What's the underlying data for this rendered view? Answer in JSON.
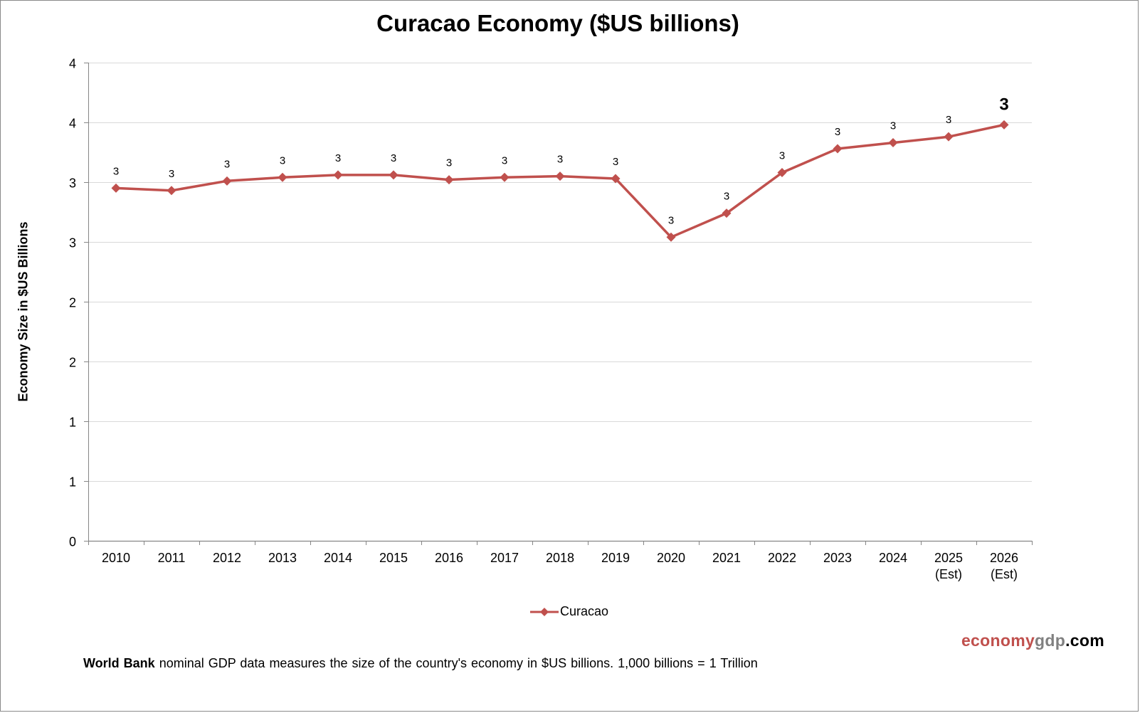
{
  "chart_data": {
    "type": "line",
    "title": "Curacao Economy ($US billions)",
    "xlabel": "",
    "ylabel": "Economy Size in $US Billions",
    "categories": [
      "2010",
      "2011",
      "2012",
      "2013",
      "2014",
      "2015",
      "2016",
      "2017",
      "2018",
      "2019",
      "2020",
      "2021",
      "2022",
      "2023",
      "2024",
      "2025\n(Est)",
      "2026\n(Est)"
    ],
    "series": [
      {
        "name": "Curacao",
        "color": "#c0504d",
        "marker": "diamond",
        "values": [
          2.95,
          2.93,
          3.01,
          3.04,
          3.06,
          3.06,
          3.02,
          3.04,
          3.05,
          3.03,
          2.54,
          2.74,
          3.08,
          3.28,
          3.33,
          3.38,
          3.48
        ],
        "data_labels": [
          "3",
          "3",
          "3",
          "3",
          "3",
          "3",
          "3",
          "3",
          "3",
          "3",
          "3",
          "3",
          "3",
          "3",
          "3",
          "3",
          "3"
        ],
        "highlight_last_label": true
      }
    ],
    "ylim": [
      0,
      4
    ],
    "y_ticks": [
      0,
      0.5,
      1,
      1.5,
      2,
      2.5,
      3,
      3.5,
      4
    ],
    "y_tick_labels": [
      "0",
      "1",
      "1",
      "2",
      "2",
      "3",
      "3",
      "4",
      "4"
    ],
    "grid": true,
    "legend": "bottom-center"
  },
  "legend": {
    "label": "Curacao"
  },
  "brand": {
    "part1": "economy",
    "part2": "gdp",
    "part3": ".com"
  },
  "footnote": {
    "bold": "World Bank",
    "text": " nominal GDP data  measures the size of the country's economy in $US billions.  1,000 billions = 1 Trillion"
  },
  "colors": {
    "series": "#c0504d",
    "grid": "#d9d9d9",
    "axis": "#868686"
  }
}
